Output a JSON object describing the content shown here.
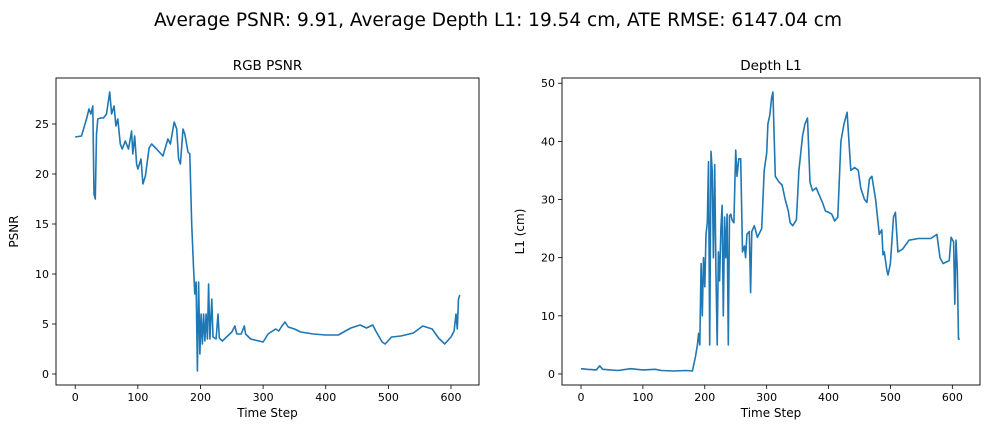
{
  "suptitle": "Average PSNR: 9.91, Average Depth L1: 19.54 cm, ATE RMSE: 6147.04 cm",
  "chart_data": [
    {
      "type": "line",
      "title": "RGB PSNR",
      "xlabel": "Time Step",
      "ylabel": "PSNR",
      "xlim": [
        -30.7,
        644.7
      ],
      "ylim": [
        -1.1,
        29.6
      ],
      "xticks": [
        0,
        100,
        200,
        300,
        400,
        500,
        600
      ],
      "yticks": [
        0,
        5,
        10,
        15,
        20,
        25
      ],
      "grid": false,
      "color": "#1f77b4",
      "x": [
        0,
        10,
        18,
        22,
        25,
        28,
        30,
        32,
        34,
        36,
        40,
        45,
        50,
        55,
        58,
        62,
        65,
        68,
        72,
        75,
        80,
        85,
        90,
        92,
        95,
        98,
        100,
        105,
        108,
        112,
        118,
        122,
        130,
        140,
        148,
        152,
        158,
        162,
        165,
        168,
        172,
        175,
        180,
        183,
        186,
        189,
        191,
        193,
        195,
        197,
        199,
        201,
        203,
        205,
        207,
        209,
        211,
        213,
        215,
        218,
        220,
        225,
        228,
        230,
        235,
        240,
        250,
        255,
        258,
        265,
        270,
        272,
        280,
        300,
        308,
        315,
        320,
        325,
        330,
        335,
        340,
        350,
        360,
        380,
        400,
        420,
        440,
        455,
        465,
        475,
        480,
        490,
        495,
        505,
        520,
        540,
        555,
        570,
        580,
        590,
        600,
        605,
        608,
        610,
        612,
        614
      ],
      "y": [
        23.7,
        23.8,
        25.5,
        26.5,
        26,
        26.8,
        18,
        17.5,
        24,
        25.5,
        25.6,
        25.6,
        26,
        28.2,
        26,
        26.8,
        24.8,
        25.5,
        23,
        22.5,
        23.3,
        22.5,
        24.3,
        22,
        23.8,
        21,
        20.5,
        21.5,
        19,
        19.8,
        22.6,
        23,
        22.5,
        21.8,
        23.5,
        23,
        25.2,
        24.5,
        21.5,
        21,
        24.5,
        24,
        22.2,
        22,
        15,
        10.5,
        8,
        9.2,
        0.3,
        9.2,
        2,
        6,
        3,
        6,
        3.3,
        6,
        3.5,
        9,
        3.5,
        7.5,
        3.7,
        3.5,
        6,
        3.6,
        3.3,
        3.6,
        4.2,
        4.8,
        4,
        4,
        4.8,
        4,
        3.5,
        3.2,
        4,
        4.3,
        4.5,
        4.3,
        4.8,
        5.2,
        4.7,
        4.5,
        4.2,
        4,
        3.9,
        3.9,
        4.6,
        4.9,
        4.6,
        4.9,
        4.3,
        3.2,
        3,
        3.7,
        3.8,
        4.1,
        4.8,
        4.5,
        3.6,
        3,
        3.7,
        4.3,
        6,
        4.5,
        7.5,
        7.9
      ]
    },
    {
      "type": "line",
      "title": "Depth L1",
      "xlabel": "Time Step",
      "ylabel": "L1 (cm)",
      "xlim": [
        -30.7,
        644.7
      ],
      "ylim": [
        -1.9,
        50.9
      ],
      "xticks": [
        0,
        100,
        200,
        300,
        400,
        500,
        600
      ],
      "yticks": [
        0,
        10,
        20,
        30,
        40,
        50
      ],
      "grid": false,
      "color": "#1f77b4",
      "x": [
        0,
        10,
        25,
        30,
        35,
        60,
        80,
        100,
        120,
        130,
        150,
        170,
        180,
        185,
        188,
        190,
        192,
        194,
        196,
        198,
        200,
        202,
        204,
        206,
        208,
        210,
        212,
        214,
        216,
        218,
        220,
        222,
        224,
        226,
        228,
        230,
        232,
        234,
        236,
        238,
        240,
        242,
        244,
        247,
        250,
        252,
        255,
        258,
        261,
        264,
        266,
        268,
        272,
        274,
        276,
        280,
        285,
        292,
        296,
        300,
        302,
        305,
        308,
        310,
        314,
        320,
        325,
        330,
        335,
        338,
        342,
        348,
        352,
        358,
        362,
        366,
        370,
        374,
        380,
        390,
        395,
        400,
        405,
        410,
        415,
        420,
        425,
        430,
        436,
        442,
        448,
        452,
        458,
        462,
        466,
        470,
        476,
        482,
        486,
        488,
        490,
        494,
        496,
        500,
        505,
        508,
        512,
        520,
        530,
        545,
        565,
        575,
        580,
        585,
        595,
        598,
        602,
        604,
        606,
        608,
        610,
        612
      ],
      "y": [
        0.9,
        0.8,
        0.7,
        1.4,
        0.8,
        0.6,
        0.9,
        0.7,
        0.8,
        0.6,
        0.5,
        0.6,
        0.5,
        3,
        5,
        7,
        5,
        19,
        10,
        20,
        15,
        24,
        26,
        36.5,
        5,
        38.3,
        35,
        20,
        36,
        18,
        5,
        21,
        16,
        25,
        29,
        10,
        27,
        20,
        27.5,
        5,
        27.2,
        27.5,
        26.5,
        26,
        38.5,
        34,
        37,
        37,
        21,
        22,
        20,
        24,
        24.5,
        14,
        24.5,
        25.5,
        23.5,
        25,
        35,
        38,
        43,
        44.5,
        47.5,
        48.5,
        34,
        33,
        32.5,
        30,
        28,
        26,
        25.5,
        26.5,
        35,
        41,
        43,
        44,
        33,
        31.5,
        32,
        29.5,
        28,
        27.8,
        27.5,
        26.3,
        27,
        40,
        43,
        45,
        35,
        35.5,
        35,
        32,
        30,
        29.5,
        33.5,
        34,
        30,
        24,
        24.8,
        20.5,
        21,
        18,
        17,
        19,
        27,
        27.8,
        21,
        21.5,
        23,
        23.3,
        23.3,
        24,
        20,
        19,
        19.5,
        23.5,
        22.7,
        12,
        23,
        18,
        6,
        6
      ]
    }
  ]
}
